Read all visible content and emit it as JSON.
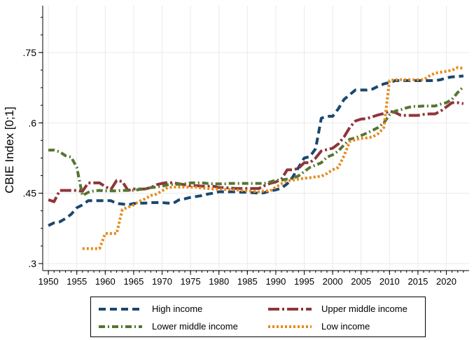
{
  "chart_data": {
    "type": "line",
    "ylabel": "CBIE Index [0;1]",
    "xlabel": "",
    "xlim": [
      1949,
      2024
    ],
    "ylim": [
      0.285,
      0.85
    ],
    "x_ticks": [
      1950,
      1955,
      1960,
      1965,
      1970,
      1975,
      1980,
      1985,
      1990,
      1995,
      2000,
      2005,
      2010,
      2015,
      2020
    ],
    "y_ticks": [
      {
        "value": 0.3,
        "label": ".3"
      },
      {
        "value": 0.45,
        "label": ".45"
      },
      {
        "value": 0.6,
        "label": ".6"
      },
      {
        "value": 0.75,
        "label": ".75"
      }
    ],
    "grid": true,
    "legend_placement": "bottom",
    "series": [
      {
        "name": "High income",
        "color": "#1a476f",
        "dash": "dash",
        "x": [
          1950,
          1951,
          1952,
          1953,
          1954,
          1955,
          1956,
          1957,
          1958,
          1959,
          1960,
          1961,
          1962,
          1963,
          1964,
          1965,
          1966,
          1967,
          1968,
          1969,
          1970,
          1971,
          1972,
          1973,
          1974,
          1975,
          1976,
          1977,
          1978,
          1979,
          1980,
          1981,
          1982,
          1983,
          1984,
          1985,
          1986,
          1987,
          1988,
          1989,
          1990,
          1991,
          1992,
          1993,
          1994,
          1995,
          1996,
          1997,
          1998,
          1999,
          2000,
          2001,
          2002,
          2003,
          2004,
          2005,
          2006,
          2007,
          2008,
          2009,
          2010,
          2011,
          2012,
          2013,
          2014,
          2015,
          2016,
          2017,
          2018,
          2019,
          2020,
          2021,
          2022,
          2023
        ],
        "y": [
          0.381,
          0.387,
          0.389,
          0.396,
          0.405,
          0.419,
          0.425,
          0.434,
          0.434,
          0.434,
          0.434,
          0.434,
          0.428,
          0.427,
          0.425,
          0.428,
          0.429,
          0.429,
          0.43,
          0.43,
          0.43,
          0.429,
          0.429,
          0.436,
          0.438,
          0.441,
          0.443,
          0.445,
          0.448,
          0.45,
          0.453,
          0.453,
          0.453,
          0.453,
          0.452,
          0.452,
          0.451,
          0.45,
          0.451,
          0.455,
          0.457,
          0.461,
          0.47,
          0.485,
          0.505,
          0.525,
          0.528,
          0.545,
          0.61,
          0.614,
          0.614,
          0.63,
          0.65,
          0.66,
          0.67,
          0.67,
          0.67,
          0.672,
          0.678,
          0.683,
          0.686,
          0.69,
          0.69,
          0.69,
          0.69,
          0.69,
          0.69,
          0.69,
          0.69,
          0.692,
          0.696,
          0.698,
          0.699,
          0.7
        ]
      },
      {
        "name": "Upper middle income",
        "color": "#90353b",
        "dash": "longdash-dot",
        "x": [
          1950,
          1951,
          1952,
          1953,
          1954,
          1955,
          1956,
          1957,
          1958,
          1959,
          1960,
          1961,
          1962,
          1963,
          1964,
          1965,
          1966,
          1967,
          1968,
          1969,
          1970,
          1971,
          1972,
          1973,
          1974,
          1975,
          1976,
          1977,
          1978,
          1979,
          1980,
          1981,
          1982,
          1983,
          1984,
          1985,
          1986,
          1987,
          1988,
          1989,
          1990,
          1991,
          1992,
          1993,
          1994,
          1995,
          1996,
          1997,
          1998,
          1999,
          2000,
          2001,
          2002,
          2003,
          2004,
          2005,
          2006,
          2007,
          2008,
          2009,
          2010,
          2011,
          2012,
          2013,
          2014,
          2015,
          2016,
          2017,
          2018,
          2019,
          2020,
          2021,
          2022,
          2023
        ],
        "y": [
          0.436,
          0.432,
          0.456,
          0.456,
          0.456,
          0.456,
          0.454,
          0.472,
          0.472,
          0.472,
          0.464,
          0.458,
          0.477,
          0.475,
          0.456,
          0.459,
          0.459,
          0.459,
          0.462,
          0.468,
          0.471,
          0.473,
          0.472,
          0.47,
          0.468,
          0.466,
          0.466,
          0.465,
          0.465,
          0.465,
          0.462,
          0.462,
          0.461,
          0.46,
          0.46,
          0.46,
          0.46,
          0.46,
          0.466,
          0.471,
          0.474,
          0.48,
          0.5,
          0.5,
          0.503,
          0.515,
          0.515,
          0.525,
          0.54,
          0.543,
          0.546,
          0.555,
          0.57,
          0.59,
          0.604,
          0.608,
          0.609,
          0.613,
          0.617,
          0.62,
          0.625,
          0.622,
          0.616,
          0.616,
          0.616,
          0.616,
          0.618,
          0.619,
          0.619,
          0.625,
          0.634,
          0.643,
          0.643,
          0.641
        ]
      },
      {
        "name": "Lower middle income",
        "color": "#55752f",
        "dash": "dash-dot",
        "x": [
          1950,
          1951,
          1952,
          1953,
          1954,
          1955,
          1956,
          1957,
          1958,
          1959,
          1960,
          1961,
          1962,
          1963,
          1964,
          1965,
          1966,
          1967,
          1968,
          1969,
          1970,
          1971,
          1972,
          1973,
          1974,
          1975,
          1976,
          1977,
          1978,
          1979,
          1980,
          1981,
          1982,
          1983,
          1984,
          1985,
          1986,
          1987,
          1988,
          1989,
          1990,
          1991,
          1992,
          1993,
          1994,
          1995,
          1996,
          1997,
          1998,
          1999,
          2000,
          2001,
          2002,
          2003,
          2004,
          2005,
          2006,
          2007,
          2008,
          2009,
          2010,
          2011,
          2012,
          2013,
          2014,
          2015,
          2016,
          2017,
          2018,
          2019,
          2020,
          2021,
          2022,
          2023
        ],
        "y": [
          0.542,
          0.542,
          0.538,
          0.53,
          0.527,
          0.505,
          0.445,
          0.452,
          0.455,
          0.456,
          0.455,
          0.455,
          0.455,
          0.456,
          0.456,
          0.456,
          0.458,
          0.459,
          0.462,
          0.463,
          0.465,
          0.468,
          0.469,
          0.469,
          0.47,
          0.472,
          0.472,
          0.472,
          0.471,
          0.47,
          0.47,
          0.47,
          0.471,
          0.471,
          0.471,
          0.471,
          0.471,
          0.471,
          0.471,
          0.474,
          0.478,
          0.478,
          0.48,
          0.482,
          0.487,
          0.496,
          0.505,
          0.51,
          0.515,
          0.527,
          0.532,
          0.54,
          0.553,
          0.565,
          0.568,
          0.573,
          0.578,
          0.584,
          0.59,
          0.6,
          0.617,
          0.625,
          0.628,
          0.632,
          0.635,
          0.635,
          0.636,
          0.636,
          0.636,
          0.64,
          0.643,
          0.65,
          0.665,
          0.677
        ]
      },
      {
        "name": "Low income",
        "color": "#e68a1b",
        "dash": "dot",
        "x": [
          1956,
          1957,
          1958,
          1959,
          1960,
          1961,
          1962,
          1963,
          1964,
          1965,
          1966,
          1967,
          1968,
          1969,
          1970,
          1971,
          1972,
          1973,
          1974,
          1975,
          1976,
          1977,
          1978,
          1979,
          1980,
          1981,
          1982,
          1983,
          1984,
          1985,
          1986,
          1987,
          1988,
          1989,
          1990,
          1991,
          1992,
          1993,
          1994,
          1995,
          1996,
          1997,
          1998,
          1999,
          2000,
          2001,
          2002,
          2003,
          2004,
          2005,
          2006,
          2007,
          2008,
          2009,
          2010,
          2011,
          2012,
          2013,
          2014,
          2015,
          2016,
          2017,
          2018,
          2019,
          2020,
          2021,
          2022,
          2023
        ],
        "y": [
          0.332,
          0.332,
          0.332,
          0.332,
          0.364,
          0.364,
          0.364,
          0.415,
          0.42,
          0.425,
          0.433,
          0.438,
          0.445,
          0.448,
          0.455,
          0.462,
          0.463,
          0.463,
          0.463,
          0.463,
          0.463,
          0.461,
          0.46,
          0.459,
          0.459,
          0.458,
          0.458,
          0.457,
          0.456,
          0.455,
          0.454,
          0.453,
          0.455,
          0.455,
          0.463,
          0.47,
          0.476,
          0.478,
          0.48,
          0.482,
          0.483,
          0.485,
          0.486,
          0.492,
          0.5,
          0.505,
          0.53,
          0.56,
          0.564,
          0.567,
          0.568,
          0.57,
          0.577,
          0.59,
          0.69,
          0.692,
          0.692,
          0.692,
          0.692,
          0.692,
          0.692,
          0.7,
          0.706,
          0.708,
          0.71,
          0.712,
          0.718,
          0.716
        ]
      }
    ]
  }
}
